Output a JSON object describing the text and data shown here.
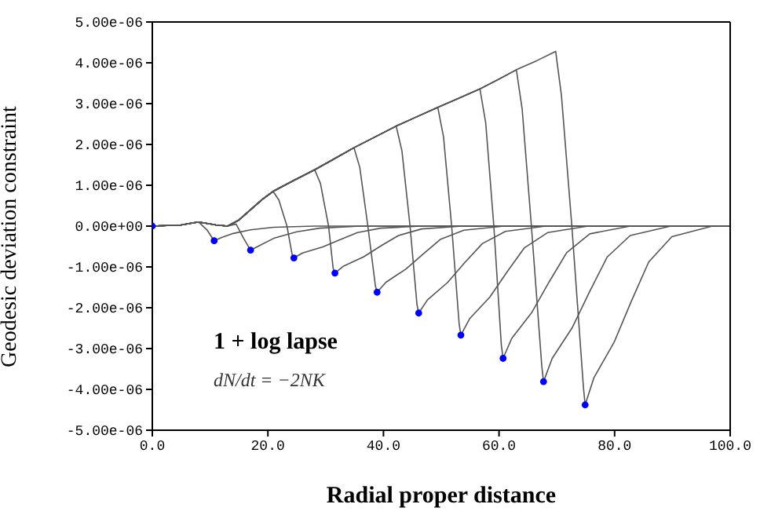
{
  "chart_data": {
    "type": "line",
    "xlabel": "Radial proper distance",
    "ylabel": "Geodesic deviation constraint",
    "annotations": [
      "1 + log lapse",
      "dN/dt = −2NK"
    ],
    "xlim": [
      0,
      100
    ],
    "xticks": [
      {
        "value": 0,
        "label": "0.0"
      },
      {
        "value": 20,
        "label": "20.0"
      },
      {
        "value": 40,
        "label": "40.0"
      },
      {
        "value": 60,
        "label": "60.0"
      },
      {
        "value": 80,
        "label": "80.0"
      },
      {
        "value": 100,
        "label": "100.0"
      }
    ],
    "ylim": [
      -5e-06,
      5e-06
    ],
    "yticks": [
      {
        "value": -5e-06,
        "label": "-5.00e-06"
      },
      {
        "value": -4e-06,
        "label": "-4.00e-06"
      },
      {
        "value": -3e-06,
        "label": "-3.00e-06"
      },
      {
        "value": -2e-06,
        "label": "-2.00e-06"
      },
      {
        "value": -1e-06,
        "label": "-1.00e-06"
      },
      {
        "value": 0,
        "label": "0.00e+00"
      },
      {
        "value": 1e-06,
        "label": "1.00e-06"
      },
      {
        "value": 2e-06,
        "label": "2.00e-06"
      },
      {
        "value": 3e-06,
        "label": "3.00e-06"
      },
      {
        "value": 4e-06,
        "label": "4.00e-06"
      },
      {
        "value": 5e-06,
        "label": "5.00e-06"
      }
    ],
    "series": [
      {
        "color": "#555555",
        "x": [
          0,
          5,
          8,
          9.5,
          10.7,
          12,
          14,
          17,
          21,
          28,
          100
        ],
        "values": [
          0,
          3e-08,
          1e-07,
          -1e-07,
          -3.6e-07,
          -2.8e-07,
          -1.8e-07,
          -9e-08,
          -3e-08,
          0,
          0
        ]
      },
      {
        "color": "#555555",
        "x": [
          0,
          5,
          8,
          11,
          13,
          14.5,
          15.8,
          17,
          18.5,
          21,
          25,
          29,
          36,
          100
        ],
        "values": [
          0,
          3e-08,
          1e-07,
          3e-08,
          0,
          5e-08,
          -3e-07,
          -5.9e-07,
          -4.8e-07,
          -3e-07,
          -1.4e-07,
          -5e-08,
          0,
          0
        ]
      },
      {
        "color": "#555555",
        "x": [
          0,
          5,
          8,
          11,
          13,
          15,
          17,
          19,
          20.9,
          21.9,
          23.3,
          24.2,
          24.5,
          26,
          29.5,
          32.5,
          35.5,
          39.5,
          46.5,
          100
        ],
        "values": [
          0,
          3e-08,
          1e-07,
          3e-08,
          0,
          1.5e-07,
          4e-07,
          6.5e-07,
          8.5e-07,
          6.4e-07,
          0,
          -7e-07,
          -7.8e-07,
          -6.6e-07,
          -5.1e-07,
          -3.3e-07,
          -1.6e-07,
          -5e-08,
          0,
          0
        ]
      },
      {
        "color": "#555555",
        "x": [
          0,
          5,
          8,
          11,
          13,
          15,
          17,
          19,
          20.9,
          24.5,
          28.1,
          29.1,
          30.5,
          31.3,
          31.6,
          33.1,
          36.6,
          39.6,
          42.6,
          46.6,
          53.6,
          100
        ],
        "values": [
          0,
          3e-08,
          1e-07,
          3e-08,
          0,
          1.5e-07,
          4e-07,
          6.5e-07,
          8.5e-07,
          1.12e-06,
          1.38e-06,
          1.04e-06,
          0,
          -1.04e-06,
          -1.15e-06,
          -9.8e-07,
          -7.5e-07,
          -4.8e-07,
          -2.3e-07,
          -7e-08,
          0,
          0
        ]
      },
      {
        "color": "#555555",
        "x": [
          0,
          5,
          8,
          11,
          13,
          15,
          17,
          19,
          20.9,
          24.5,
          28.1,
          31.5,
          34.9,
          35.9,
          37.3,
          38.6,
          38.9,
          40.4,
          43.9,
          46.9,
          49.9,
          53.9,
          60.9,
          100
        ],
        "values": [
          0,
          3e-08,
          1e-07,
          3e-08,
          0,
          1.5e-07,
          4e-07,
          6.5e-07,
          8.5e-07,
          1.12e-06,
          1.38e-06,
          1.65e-06,
          1.92e-06,
          1.44e-06,
          0,
          -1.46e-06,
          -1.62e-06,
          -1.38e-06,
          -1.05e-06,
          -6.8e-07,
          -3.2e-07,
          -1e-07,
          0,
          0
        ]
      },
      {
        "color": "#555555",
        "x": [
          0,
          5,
          8,
          11,
          13,
          15,
          17,
          19,
          20.9,
          24.5,
          28.1,
          31.5,
          34.9,
          38.5,
          42.2,
          43.2,
          44.6,
          45.8,
          46.1,
          47.6,
          51.1,
          54.1,
          57.1,
          61.1,
          68.1,
          100
        ],
        "values": [
          0,
          3e-08,
          1e-07,
          3e-08,
          0,
          1.5e-07,
          4e-07,
          6.5e-07,
          8.5e-07,
          1.12e-06,
          1.38e-06,
          1.65e-06,
          1.92e-06,
          2.18e-06,
          2.45e-06,
          1.84e-06,
          0,
          -1.92e-06,
          -2.13e-06,
          -1.81e-06,
          -1.38e-06,
          -8.9e-07,
          -4.3e-07,
          -1.3e-07,
          0,
          0
        ]
      },
      {
        "color": "#555555",
        "x": [
          0,
          5,
          8,
          11,
          13,
          15,
          17,
          19,
          20.9,
          24.5,
          28.1,
          31.5,
          34.9,
          38.5,
          42.2,
          45.8,
          49.4,
          50.4,
          51.8,
          53.1,
          53.4,
          54.9,
          58.4,
          61.4,
          64.4,
          68.4,
          75.4,
          100
        ],
        "values": [
          0,
          3e-08,
          1e-07,
          3e-08,
          0,
          1.5e-07,
          4e-07,
          6.5e-07,
          8.5e-07,
          1.12e-06,
          1.38e-06,
          1.65e-06,
          1.92e-06,
          2.18e-06,
          2.45e-06,
          2.68e-06,
          2.91e-06,
          2.18e-06,
          0,
          -2.4e-06,
          -2.67e-06,
          -2.27e-06,
          -1.74e-06,
          -1.12e-06,
          -5.3e-07,
          -1.6e-07,
          0,
          0
        ]
      },
      {
        "color": "#555555",
        "x": [
          0,
          5,
          8,
          11,
          13,
          15,
          17,
          19,
          20.9,
          24.5,
          28.1,
          31.5,
          34.9,
          38.5,
          42.2,
          45.8,
          49.4,
          53,
          56.7,
          57.7,
          59.1,
          60.4,
          60.7,
          62.2,
          65.7,
          68.7,
          71.7,
          75.7,
          82.7,
          100
        ],
        "values": [
          0,
          3e-08,
          1e-07,
          3e-08,
          0,
          1.5e-07,
          4e-07,
          6.5e-07,
          8.5e-07,
          1.12e-06,
          1.38e-06,
          1.65e-06,
          1.92e-06,
          2.18e-06,
          2.45e-06,
          2.68e-06,
          2.91e-06,
          3.13e-06,
          3.36e-06,
          2.52e-06,
          0,
          -2.92e-06,
          -3.24e-06,
          -2.75e-06,
          -2.11e-06,
          -1.36e-06,
          -6.5e-07,
          -1.9e-07,
          0,
          0
        ]
      },
      {
        "color": "#555555",
        "x": [
          0,
          5,
          8,
          11,
          13,
          15,
          17,
          19,
          20.9,
          24.5,
          28.1,
          31.5,
          34.9,
          38.5,
          42.2,
          45.8,
          49.4,
          53,
          56.7,
          60,
          63,
          64,
          65.6,
          67.4,
          67.7,
          69.2,
          72.7,
          75.7,
          78.7,
          82.7,
          89.7,
          100
        ],
        "values": [
          0,
          3e-08,
          1e-07,
          3e-08,
          0,
          1.5e-07,
          4e-07,
          6.5e-07,
          8.5e-07,
          1.12e-06,
          1.38e-06,
          1.65e-06,
          1.92e-06,
          2.18e-06,
          2.45e-06,
          2.68e-06,
          2.91e-06,
          3.13e-06,
          3.36e-06,
          3.6e-06,
          3.83e-06,
          2.87e-06,
          0,
          -3.43e-06,
          -3.81e-06,
          -3.24e-06,
          -2.48e-06,
          -1.6e-06,
          -7.6e-07,
          -2.3e-07,
          0,
          0
        ]
      },
      {
        "color": "#555555",
        "x": [
          0,
          5,
          8,
          11,
          13,
          15,
          17,
          19,
          20.9,
          24.5,
          28.1,
          31.5,
          34.9,
          38.5,
          42.2,
          45.8,
          49.4,
          53,
          56.7,
          60,
          63,
          66.5,
          69.8,
          70.8,
          72.6,
          74.6,
          74.9,
          76.4,
          79.9,
          82.9,
          85.9,
          89.9,
          96.9,
          100
        ],
        "values": [
          0,
          3e-08,
          1e-07,
          3e-08,
          0,
          1.5e-07,
          4e-07,
          6.5e-07,
          8.5e-07,
          1.12e-06,
          1.38e-06,
          1.65e-06,
          1.92e-06,
          2.18e-06,
          2.45e-06,
          2.68e-06,
          2.91e-06,
          3.13e-06,
          3.36e-06,
          3.6e-06,
          3.83e-06,
          4.05e-06,
          4.28e-06,
          3.2e-06,
          0,
          -3.94e-06,
          -4.38e-06,
          -3.72e-06,
          -2.85e-06,
          -1.84e-06,
          -8.8e-07,
          -2.6e-07,
          0,
          0
        ]
      },
      {
        "type": "scatter",
        "marker": "circle",
        "color": "#0000ff",
        "x": [
          0,
          10.7,
          17,
          24.5,
          31.6,
          38.9,
          46.1,
          53.4,
          60.7,
          67.7,
          74.9
        ],
        "values": [
          0,
          -3.6e-07,
          -5.9e-07,
          -7.8e-07,
          -1.15e-06,
          -1.62e-06,
          -2.13e-06,
          -2.67e-06,
          -3.24e-06,
          -3.81e-06,
          -4.38e-06
        ]
      }
    ]
  }
}
